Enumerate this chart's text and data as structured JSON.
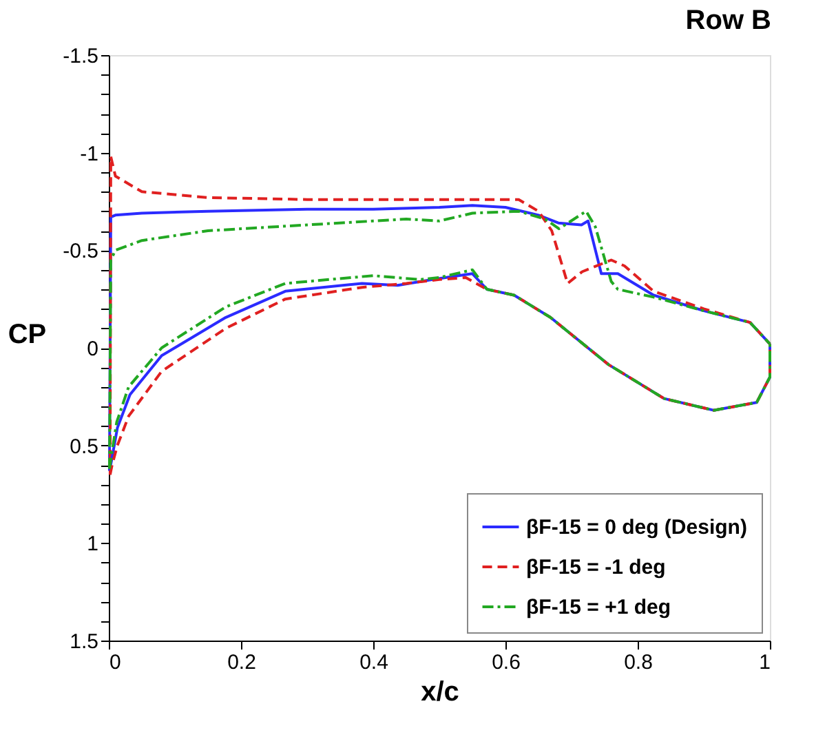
{
  "chart_data": {
    "type": "line",
    "title": "Row B",
    "xlabel": "x/c",
    "ylabel": "CP",
    "xlim": [
      0,
      1
    ],
    "xticks": [
      0,
      0.2,
      0.4,
      0.6,
      0.8,
      1
    ],
    "ylim": [
      1.5,
      -1.5
    ],
    "yticks": [
      -1.5,
      {
        "value": -1.4,
        "label": null
      },
      {
        "value": -1.3,
        "label": null
      },
      {
        "value": -1.2,
        "label": null
      },
      {
        "value": -1.1,
        "label": null
      },
      -1,
      {
        "value": -0.9,
        "label": null
      },
      {
        "value": -0.8,
        "label": null
      },
      {
        "value": -0.7,
        "label": null
      },
      {
        "value": -0.6,
        "label": null
      },
      -0.5,
      {
        "value": -0.4,
        "label": null
      },
      {
        "value": -0.3,
        "label": null
      },
      {
        "value": -0.2,
        "label": null
      },
      {
        "value": -0.1,
        "label": null
      },
      0,
      {
        "value": 0.1,
        "label": null
      },
      {
        "value": 0.2,
        "label": null
      },
      {
        "value": 0.3,
        "label": null
      },
      {
        "value": 0.4,
        "label": null
      },
      0.5,
      {
        "value": 0.6,
        "label": null
      },
      {
        "value": 0.7,
        "label": null
      },
      {
        "value": 0.8,
        "label": null
      },
      {
        "value": 0.9,
        "label": null
      },
      1,
      {
        "value": 1.1,
        "label": null
      },
      {
        "value": 1.2,
        "label": null
      },
      {
        "value": 1.3,
        "label": null
      },
      {
        "value": 1.4,
        "label": null
      },
      1.5
    ],
    "grid": false,
    "legend": "bottom right",
    "marker": "none",
    "series": [
      {
        "name": "βF-15 = 0 deg (Design)",
        "color": "#2b2bff",
        "line_style": "solid",
        "x": [
          0.001,
          0.003,
          0.01,
          0.05,
          0.15,
          0.3,
          0.4,
          0.5,
          0.55,
          0.6,
          0.65,
          0.68,
          0.715,
          0.725,
          0.745,
          0.77,
          0.824,
          0.9,
          0.97,
          1.0
        ],
        "values": [
          0.63,
          -0.67,
          -0.68,
          -0.69,
          -0.7,
          -0.71,
          -0.71,
          -0.72,
          -0.73,
          -0.72,
          -0.68,
          -0.64,
          -0.63,
          -0.65,
          -0.38,
          -0.38,
          -0.27,
          -0.19,
          -0.13,
          -0.02
        ]
      },
      {
        "name": "βF-15 = -1 deg",
        "color": "#e02020",
        "line_style": "dashed",
        "x": [
          0.002,
          0.003,
          0.01,
          0.05,
          0.15,
          0.3,
          0.5,
          0.62,
          0.65,
          0.67,
          0.694,
          0.716,
          0.76,
          0.78,
          0.824,
          0.9,
          0.97,
          1.0
        ],
        "values": [
          0.65,
          -0.98,
          -0.88,
          -0.8,
          -0.77,
          -0.76,
          -0.76,
          -0.76,
          -0.7,
          -0.6,
          -0.33,
          -0.39,
          -0.45,
          -0.42,
          -0.29,
          -0.2,
          -0.13,
          -0.02
        ]
      },
      {
        "name": "βF-15 = +1 deg",
        "color": "#22a822",
        "line_style": "dashdot",
        "x": [
          0.001,
          0.003,
          0.01,
          0.05,
          0.15,
          0.3,
          0.45,
          0.5,
          0.55,
          0.62,
          0.66,
          0.681,
          0.722,
          0.736,
          0.76,
          0.77,
          0.824,
          0.9,
          0.97,
          1.0
        ],
        "values": [
          0.62,
          -0.45,
          -0.5,
          -0.55,
          -0.6,
          -0.63,
          -0.66,
          -0.65,
          -0.69,
          -0.7,
          -0.66,
          -0.61,
          -0.7,
          -0.62,
          -0.34,
          -0.3,
          -0.26,
          -0.19,
          -0.13,
          -0.02
        ]
      },
      {
        "color": "#2b2bff",
        "line_style": "solid",
        "x": [
          0.001,
          0.004,
          0.013,
          0.032,
          0.08,
          0.177,
          0.267,
          0.383,
          0.437,
          0.49,
          0.55,
          0.572,
          0.613,
          0.668,
          0.756,
          0.84,
          0.915,
          0.98,
          1.0,
          1.0
        ],
        "values": [
          0.63,
          0.58,
          0.41,
          0.24,
          0.04,
          -0.156,
          -0.29,
          -0.33,
          -0.32,
          -0.35,
          -0.38,
          -0.3,
          -0.27,
          -0.156,
          0.086,
          0.26,
          0.32,
          0.28,
          0.15,
          -0.02
        ]
      },
      {
        "color": "#e02020",
        "line_style": "dashed",
        "x": [
          0.002,
          0.005,
          0.013,
          0.03,
          0.08,
          0.177,
          0.267,
          0.383,
          0.45,
          0.5,
          0.54,
          0.572,
          0.613,
          0.668,
          0.756,
          0.84,
          0.915,
          0.98,
          1.0,
          1.0
        ],
        "values": [
          0.65,
          0.6,
          0.5,
          0.35,
          0.12,
          -0.1,
          -0.25,
          -0.31,
          -0.33,
          -0.35,
          -0.36,
          -0.3,
          -0.27,
          -0.156,
          0.086,
          0.26,
          0.32,
          0.28,
          0.15,
          -0.02
        ]
      },
      {
        "color": "#22a822",
        "line_style": "dashdot",
        "x": [
          0.001,
          0.004,
          0.012,
          0.03,
          0.08,
          0.177,
          0.267,
          0.4,
          0.47,
          0.5,
          0.55,
          0.572,
          0.613,
          0.668,
          0.756,
          0.84,
          0.915,
          0.98,
          1.0,
          1.0
        ],
        "values": [
          0.62,
          0.55,
          0.38,
          0.2,
          0.0,
          -0.21,
          -0.33,
          -0.37,
          -0.35,
          -0.36,
          -0.4,
          -0.3,
          -0.27,
          -0.156,
          0.086,
          0.26,
          0.32,
          0.28,
          0.15,
          -0.02
        ]
      }
    ]
  }
}
